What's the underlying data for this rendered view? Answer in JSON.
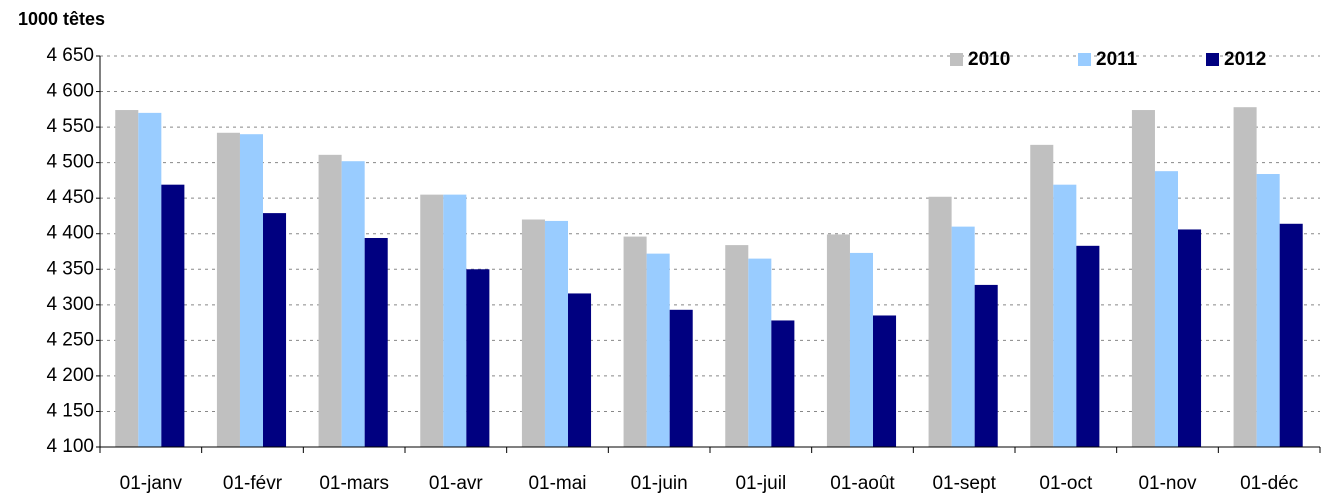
{
  "chart_data": {
    "type": "bar",
    "y_label": "1000 têtes",
    "categories": [
      "01-janv",
      "01-févr",
      "01-mars",
      "01-avr",
      "01-mai",
      "01-juin",
      "01-juil",
      "01-août",
      "01-sept",
      "01-oct",
      "01-nov",
      "01-déc"
    ],
    "series": [
      {
        "name": "2010",
        "color": "#c0c0c0",
        "values": [
          4574,
          4542,
          4511,
          4455,
          4420,
          4396,
          4384,
          4399,
          4452,
          4525,
          4574,
          4578
        ]
      },
      {
        "name": "2011",
        "color": "#99ccff",
        "values": [
          4570,
          4540,
          4502,
          4455,
          4418,
          4372,
          4365,
          4373,
          4410,
          4469,
          4488,
          4484
        ]
      },
      {
        "name": "2012",
        "color": "#000080",
        "values": [
          4469,
          4429,
          4394,
          4350,
          4316,
          4293,
          4278,
          4285,
          4328,
          4383,
          4406,
          4414
        ]
      }
    ],
    "ylim": [
      4100,
      4650
    ],
    "yticks": [
      {
        "value": 4100,
        "label": "4 100"
      },
      {
        "value": 4150,
        "label": "4 150"
      },
      {
        "value": 4200,
        "label": "4 200"
      },
      {
        "value": 4250,
        "label": "4 250"
      },
      {
        "value": 4300,
        "label": "4 300"
      },
      {
        "value": 4350,
        "label": "4 350"
      },
      {
        "value": 4400,
        "label": "4 400"
      },
      {
        "value": 4450,
        "label": "4 450"
      },
      {
        "value": 4500,
        "label": "4 500"
      },
      {
        "value": 4550,
        "label": "4 550"
      },
      {
        "value": 4600,
        "label": "4 600"
      },
      {
        "value": 4650,
        "label": "4 650"
      }
    ],
    "grid": true,
    "legend": "top-right"
  }
}
